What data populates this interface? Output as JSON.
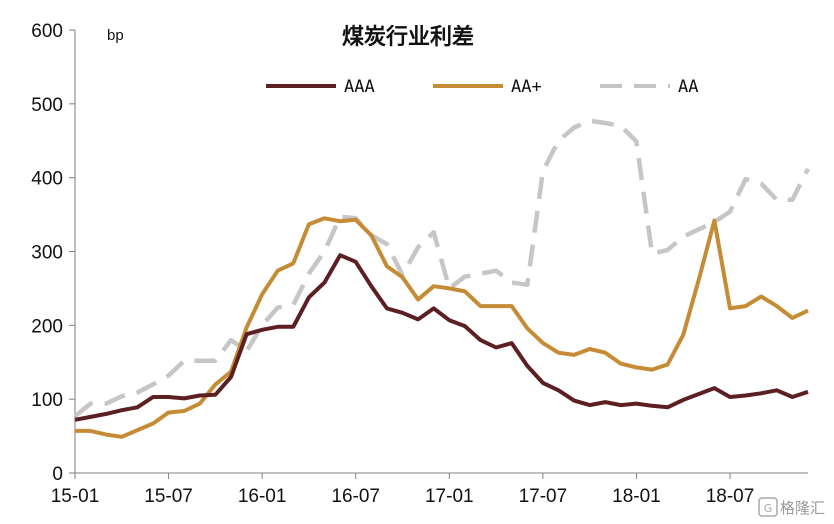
{
  "chart_data": {
    "type": "line",
    "title": "煤炭行业利差",
    "ylabel": "bp",
    "xlabel": "",
    "ylim": [
      0,
      600
    ],
    "yticks": [
      0,
      100,
      200,
      300,
      400,
      500,
      600
    ],
    "xtick_labels": [
      "15-01",
      "15-07",
      "16-01",
      "16-07",
      "17-01",
      "17-07",
      "18-01",
      "18-07"
    ],
    "legend_position": "top-center",
    "grid": false,
    "series": [
      {
        "name": "AAA",
        "color": "#5c1f22",
        "dash": "solid",
        "values": [
          72,
          76,
          80,
          85,
          89,
          103,
          103,
          101,
          105,
          106,
          130,
          188,
          194,
          198,
          198,
          238,
          258,
          295,
          286,
          253,
          223,
          217,
          208,
          223,
          207,
          199,
          180,
          170,
          176,
          145,
          122,
          112,
          98,
          92,
          96,
          92,
          94,
          91,
          89,
          99,
          107,
          115,
          103,
          105,
          108,
          112,
          103,
          110
        ]
      },
      {
        "name": "AA+",
        "color": "#c58b35",
        "dash": "solid",
        "values": [
          57,
          57,
          52,
          49,
          58,
          67,
          82,
          84,
          94,
          120,
          137,
          197,
          242,
          274,
          284,
          337,
          345,
          341,
          343,
          322,
          280,
          265,
          235,
          253,
          250,
          246,
          226,
          226,
          226,
          196,
          176,
          163,
          160,
          168,
          163,
          148,
          143,
          140,
          147,
          187,
          262,
          342,
          223,
          226,
          239,
          226,
          210,
          220
        ]
      },
      {
        "name": "AA",
        "color": "#c6c6c6",
        "dash": "dashed",
        "values": [
          77,
          94,
          94,
          104,
          109,
          120,
          132,
          152,
          152,
          152,
          180,
          165,
          200,
          224,
          228,
          270,
          300,
          347,
          345,
          322,
          310,
          268,
          306,
          326,
          250,
          266,
          270,
          274,
          258,
          255,
          409,
          450,
          468,
          477,
          474,
          470,
          449,
          297,
          302,
          320,
          330,
          340,
          354,
          398,
          392,
          370,
          370,
          412
        ]
      }
    ]
  },
  "watermark": "格隆汇"
}
